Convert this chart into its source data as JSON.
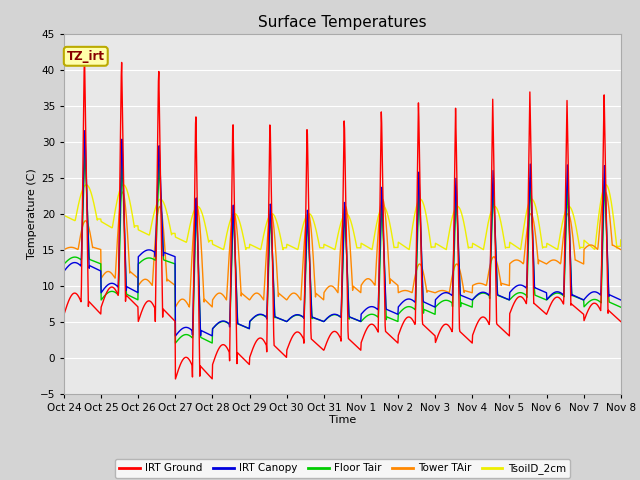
{
  "title": "Surface Temperatures",
  "xlabel": "Time",
  "ylabel": "Temperature (C)",
  "ylim": [
    -5,
    45
  ],
  "yticks": [
    -5,
    0,
    5,
    10,
    15,
    20,
    25,
    30,
    35,
    40,
    45
  ],
  "x_tick_labels": [
    "Oct 24",
    "Oct 25",
    "Oct 26",
    "Oct 27",
    "Oct 28",
    "Oct 29",
    "Oct 30",
    "Oct 31",
    "Nov 1",
    "Nov 2",
    "Nov 3",
    "Nov 4",
    "Nov 5",
    "Nov 6",
    "Nov 7",
    "Nov 8"
  ],
  "colors": {
    "IRT Ground": "#ff0000",
    "IRT Canopy": "#0000dd",
    "Floor Tair": "#00cc00",
    "Tower TAir": "#ff8800",
    "TsoilD_2cm": "#eeee00"
  },
  "fig_bg_color": "#d4d4d4",
  "plot_bg_color": "#e8e8e8",
  "annotation_text": "TZ_irt",
  "annotation_bg": "#ffffaa",
  "annotation_border": "#bbaa00",
  "annotation_text_color": "#880000",
  "grid_color": "#ffffff",
  "n_days": 15,
  "pts_per_day": 96
}
